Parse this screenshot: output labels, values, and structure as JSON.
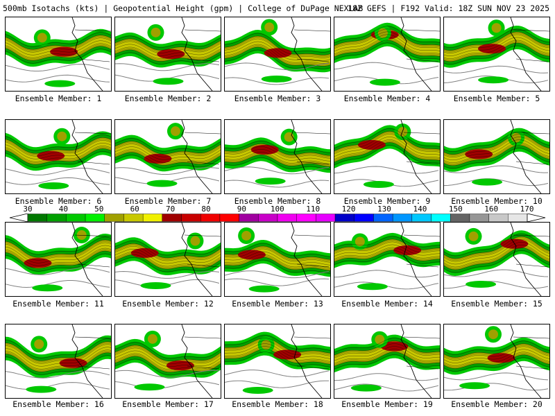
{
  "header": {
    "title": "500mb Isotachs (kts) | Geopotential Height (gpm) | College of DuPage NEXLAB",
    "run_info": "18Z GEFS | F192 Valid: 18Z SUN NOV 23 2025"
  },
  "colorbar": {
    "labels": [
      "30",
      "40",
      "50",
      "60",
      "70",
      "80",
      "90",
      "100",
      "110",
      "120",
      "130",
      "140",
      "150",
      "160",
      "170"
    ],
    "colors": [
      "#007800",
      "#00a000",
      "#00c800",
      "#00f000",
      "#a0a000",
      "#c8c800",
      "#f0f000",
      "#a00000",
      "#c80000",
      "#f00000",
      "#ff0000",
      "#a000a0",
      "#c800c8",
      "#f000f0",
      "#ff00ff",
      "#e600ff",
      "#0000c8",
      "#0000ff",
      "#0064ff",
      "#0096ff",
      "#00c8ff",
      "#00ffff",
      "#646464",
      "#969696",
      "#c8c8c8",
      "#e6e6e6"
    ]
  },
  "panels": [
    {
      "label": "Ensemble Member: 1"
    },
    {
      "label": "Ensemble Member: 2"
    },
    {
      "label": "Ensemble Member: 3"
    },
    {
      "label": "Ensemble Member: 4"
    },
    {
      "label": "Ensemble Member: 5"
    },
    {
      "label": "Ensemble Member: 6"
    },
    {
      "label": "Ensemble Member: 7"
    },
    {
      "label": "Ensemble Member: 8"
    },
    {
      "label": "Ensemble Member: 9"
    },
    {
      "label": "Ensemble Member: 10"
    },
    {
      "label": "Ensemble Member: 11"
    },
    {
      "label": "Ensemble Member: 12"
    },
    {
      "label": "Ensemble Member: 13"
    },
    {
      "label": "Ensemble Member: 14"
    },
    {
      "label": "Ensemble Member: 15"
    },
    {
      "label": "Ensemble Member: 16"
    },
    {
      "label": "Ensemble Member: 17"
    },
    {
      "label": "Ensemble Member: 18"
    },
    {
      "label": "Ensemble Member: 19"
    },
    {
      "label": "Ensemble Member: 20"
    }
  ]
}
